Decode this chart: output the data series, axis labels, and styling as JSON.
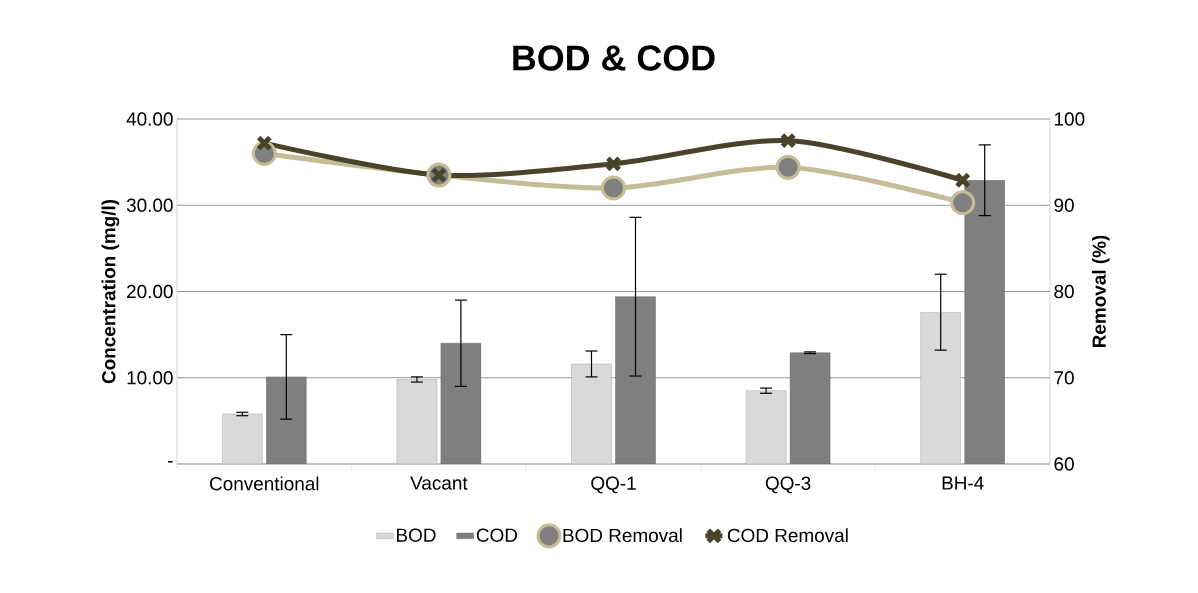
{
  "chart_data": {
    "type": "bar",
    "title": "BOD & COD",
    "categories": [
      "Conventional",
      "Vacant",
      "QQ-1",
      "QQ-3",
      "BH-4"
    ],
    "ylabel": "Concentration (mg/l)",
    "y2label": "Removal (%)",
    "ylim": [
      0,
      40
    ],
    "yticks": [
      {
        "value": 0,
        "label": "-"
      },
      {
        "value": 10,
        "label": "10.00"
      },
      {
        "value": 20,
        "label": "20.00"
      },
      {
        "value": 30,
        "label": "30.00"
      },
      {
        "value": 40,
        "label": "40.00"
      }
    ],
    "y2lim": [
      60,
      100
    ],
    "y2ticks": [
      60,
      70,
      80,
      90,
      100
    ],
    "grid": "y",
    "legend": "bottom",
    "series": [
      {
        "name": "BOD",
        "color": "#d9d9d9",
        "values": [
          5.8,
          9.8,
          11.6,
          8.5,
          17.6
        ],
        "errors": [
          0.2,
          0.3,
          1.5,
          0.3,
          4.4
        ]
      },
      {
        "name": "COD",
        "color": "#7f7f7f",
        "values": [
          10.1,
          14.0,
          19.4,
          12.9,
          32.9
        ],
        "errors": [
          4.9,
          5.0,
          9.2,
          0.1,
          4.1
        ]
      },
      {
        "name": "BOD Removal",
        "type": "line",
        "axis": "y2",
        "color": "#c4bd97",
        "marker": "circle",
        "values": [
          96.0,
          93.5,
          92.0,
          94.4,
          90.3
        ]
      },
      {
        "name": "COD Removal",
        "type": "line",
        "axis": "y2",
        "color": "#494429",
        "marker": "cross",
        "values": [
          97.2,
          93.5,
          94.8,
          97.5,
          92.9
        ]
      }
    ]
  }
}
